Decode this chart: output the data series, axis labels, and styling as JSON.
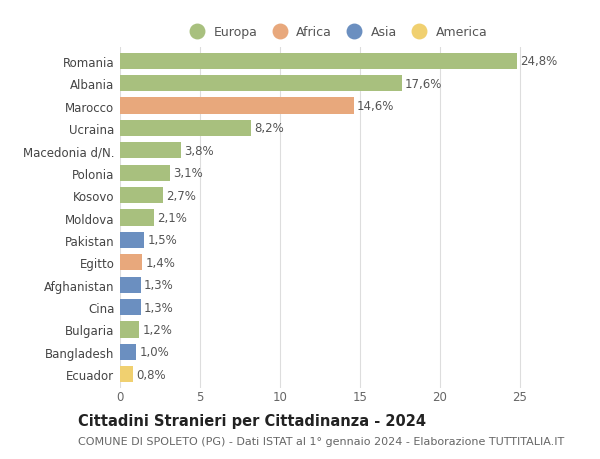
{
  "categories": [
    "Romania",
    "Albania",
    "Marocco",
    "Ucraina",
    "Macedonia d/N.",
    "Polonia",
    "Kosovo",
    "Moldova",
    "Pakistan",
    "Egitto",
    "Afghanistan",
    "Cina",
    "Bulgaria",
    "Bangladesh",
    "Ecuador"
  ],
  "values": [
    24.8,
    17.6,
    14.6,
    8.2,
    3.8,
    3.1,
    2.7,
    2.1,
    1.5,
    1.4,
    1.3,
    1.3,
    1.2,
    1.0,
    0.8
  ],
  "labels": [
    "24,8%",
    "17,6%",
    "14,6%",
    "8,2%",
    "3,8%",
    "3,1%",
    "2,7%",
    "2,1%",
    "1,5%",
    "1,4%",
    "1,3%",
    "1,3%",
    "1,2%",
    "1,0%",
    "0,8%"
  ],
  "colors": [
    "#a8c07e",
    "#a8c07e",
    "#e8a87c",
    "#a8c07e",
    "#a8c07e",
    "#a8c07e",
    "#a8c07e",
    "#a8c07e",
    "#6b8fc0",
    "#e8a87c",
    "#6b8fc0",
    "#6b8fc0",
    "#a8c07e",
    "#6b8fc0",
    "#f0d070"
  ],
  "legend": [
    {
      "label": "Europa",
      "color": "#a8c07e"
    },
    {
      "label": "Africa",
      "color": "#e8a87c"
    },
    {
      "label": "Asia",
      "color": "#6b8fc0"
    },
    {
      "label": "America",
      "color": "#f0d070"
    }
  ],
  "title": "Cittadini Stranieri per Cittadinanza - 2024",
  "subtitle": "COMUNE DI SPOLETO (PG) - Dati ISTAT al 1° gennaio 2024 - Elaborazione TUTTITALIA.IT",
  "xlim": [
    0,
    27
  ],
  "xticks": [
    0,
    5,
    10,
    15,
    20,
    25
  ],
  "background_color": "#ffffff",
  "grid_color": "#dddddd",
  "bar_height": 0.72,
  "label_fontsize": 8.5,
  "tick_fontsize": 8.5,
  "title_fontsize": 10.5,
  "subtitle_fontsize": 8.0
}
